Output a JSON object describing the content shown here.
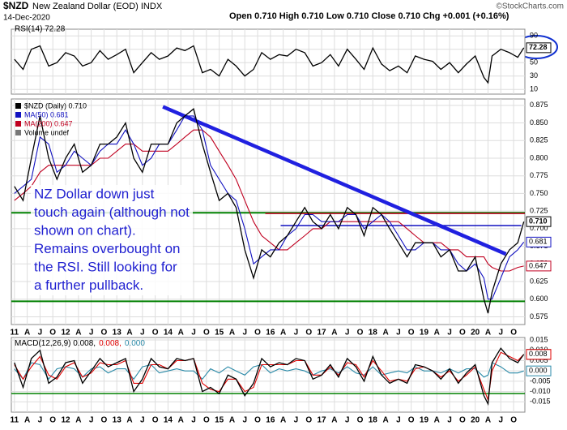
{
  "header": {
    "title": "$NZD",
    "subtitle": "New Zealand Dollar (EOD) INDX",
    "date": "14-Dec-2020",
    "quote": "Open 0.710  High 0.710  Low 0.710  Close 0.710  Chg +0.001 (+0.16%)",
    "source": "©StockCharts.com"
  },
  "chart_data": [
    {
      "type": "line",
      "ylim": [
        3,
        100
      ],
      "yticks": [
        10,
        30,
        50,
        70,
        90
      ],
      "grid": true,
      "x": [
        2011,
        2011.17,
        2011.33,
        2011.5,
        2011.67,
        2011.83,
        2012,
        2012.17,
        2012.33,
        2012.5,
        2012.67,
        2012.83,
        2013,
        2013.17,
        2013.33,
        2013.5,
        2013.67,
        2013.83,
        2014,
        2014.17,
        2014.33,
        2014.5,
        2014.67,
        2014.83,
        2015,
        2015.17,
        2015.33,
        2015.5,
        2015.67,
        2015.83,
        2016,
        2016.17,
        2016.33,
        2016.5,
        2016.67,
        2016.83,
        2017,
        2017.17,
        2017.33,
        2017.5,
        2017.67,
        2017.83,
        2018,
        2018.17,
        2018.33,
        2018.5,
        2018.67,
        2018.83,
        2019,
        2019.17,
        2019.33,
        2019.5,
        2019.67,
        2019.83,
        2020,
        2020.17,
        2020.25,
        2020.33,
        2020.5,
        2020.67,
        2020.83,
        2020.95
      ],
      "series": [
        {
          "name": "RSI(14) 72.28",
          "color": "#000000",
          "last_label": "72.28",
          "values": [
            55,
            40,
            70,
            75,
            45,
            50,
            65,
            60,
            45,
            50,
            68,
            55,
            62,
            70,
            35,
            50,
            65,
            55,
            60,
            72,
            68,
            75,
            35,
            40,
            30,
            55,
            45,
            30,
            40,
            65,
            55,
            62,
            60,
            70,
            65,
            45,
            50,
            62,
            45,
            70,
            55,
            40,
            72,
            48,
            38,
            45,
            35,
            60,
            55,
            52,
            40,
            50,
            35,
            48,
            60,
            28,
            20,
            60,
            70,
            65,
            58,
            72.28
          ]
        }
      ]
    },
    {
      "type": "line",
      "xlim": [
        2010.94,
        2020.97
      ],
      "ylim": [
        0.564,
        0.884
      ],
      "grid": true,
      "xticks": [
        {
          "value": 2011,
          "label": "11"
        },
        {
          "value": 2011.25,
          "label": "A"
        },
        {
          "value": 2011.5,
          "label": "J"
        },
        {
          "value": 2011.75,
          "label": "O"
        },
        {
          "value": 2012,
          "label": "12"
        },
        {
          "value": 2012.25,
          "label": "A"
        },
        {
          "value": 2012.5,
          "label": "J"
        },
        {
          "value": 2012.75,
          "label": "O"
        },
        {
          "value": 2013,
          "label": "13"
        },
        {
          "value": 2013.25,
          "label": "A"
        },
        {
          "value": 2013.5,
          "label": "J"
        },
        {
          "value": 2013.75,
          "label": "O"
        },
        {
          "value": 2014,
          "label": "14"
        },
        {
          "value": 2014.25,
          "label": "A"
        },
        {
          "value": 2014.5,
          "label": "J"
        },
        {
          "value": 2014.75,
          "label": "O"
        },
        {
          "value": 2015,
          "label": "15"
        },
        {
          "value": 2015.25,
          "label": "A"
        },
        {
          "value": 2015.5,
          "label": "J"
        },
        {
          "value": 2015.75,
          "label": "O"
        },
        {
          "value": 2016,
          "label": "16"
        },
        {
          "value": 2016.25,
          "label": "A"
        },
        {
          "value": 2016.5,
          "label": "J"
        },
        {
          "value": 2016.75,
          "label": "O"
        },
        {
          "value": 2017,
          "label": "17"
        },
        {
          "value": 2017.25,
          "label": "A"
        },
        {
          "value": 2017.5,
          "label": "J"
        },
        {
          "value": 2017.75,
          "label": "O"
        },
        {
          "value": 2018,
          "label": "18"
        },
        {
          "value": 2018.25,
          "label": "A"
        },
        {
          "value": 2018.5,
          "label": "J"
        },
        {
          "value": 2018.75,
          "label": "O"
        },
        {
          "value": 2019,
          "label": "19"
        },
        {
          "value": 2019.25,
          "label": "A"
        },
        {
          "value": 2019.5,
          "label": "J"
        },
        {
          "value": 2019.75,
          "label": "O"
        },
        {
          "value": 2020,
          "label": "20"
        },
        {
          "value": 2020.25,
          "label": "A"
        },
        {
          "value": 2020.5,
          "label": "J"
        },
        {
          "value": 2020.75,
          "label": "O"
        }
      ],
      "yticks": [
        0.875,
        {
          "value": 0.85,
          "label": "0.850"
        },
        0.825,
        {
          "value": 0.8,
          "label": "0.800"
        },
        0.775,
        {
          "value": 0.75,
          "label": "0.750"
        },
        0.725,
        {
          "value": 0.7,
          "label": "0.700"
        },
        0.675,
        {
          "value": 0.65,
          "label": "0.650"
        },
        0.625,
        {
          "value": 0.6,
          "label": "0.600"
        },
        0.575
      ],
      "x": [
        2011,
        2011.17,
        2011.33,
        2011.5,
        2011.67,
        2011.83,
        2012,
        2012.17,
        2012.33,
        2012.5,
        2012.67,
        2012.83,
        2013,
        2013.17,
        2013.33,
        2013.5,
        2013.67,
        2013.83,
        2014,
        2014.17,
        2014.33,
        2014.5,
        2014.67,
        2014.83,
        2015,
        2015.17,
        2015.33,
        2015.5,
        2015.67,
        2015.83,
        2016,
        2016.17,
        2016.33,
        2016.5,
        2016.67,
        2016.83,
        2017,
        2017.17,
        2017.33,
        2017.5,
        2017.67,
        2017.83,
        2018,
        2018.17,
        2018.33,
        2018.5,
        2018.67,
        2018.83,
        2019,
        2019.17,
        2019.33,
        2019.5,
        2019.67,
        2019.83,
        2020,
        2020.17,
        2020.25,
        2020.33,
        2020.5,
        2020.67,
        2020.83,
        2020.95
      ],
      "series": [
        {
          "name": "$NZD (Daily) 0.710",
          "color": "#000000",
          "last_label": "0.710",
          "values": [
            0.76,
            0.74,
            0.8,
            0.86,
            0.8,
            0.77,
            0.8,
            0.82,
            0.78,
            0.79,
            0.82,
            0.82,
            0.83,
            0.85,
            0.8,
            0.78,
            0.82,
            0.82,
            0.82,
            0.85,
            0.86,
            0.87,
            0.82,
            0.78,
            0.74,
            0.75,
            0.73,
            0.67,
            0.63,
            0.67,
            0.66,
            0.68,
            0.69,
            0.71,
            0.73,
            0.71,
            0.7,
            0.72,
            0.7,
            0.73,
            0.72,
            0.69,
            0.73,
            0.72,
            0.7,
            0.68,
            0.66,
            0.68,
            0.68,
            0.68,
            0.66,
            0.67,
            0.64,
            0.64,
            0.66,
            0.6,
            0.58,
            0.61,
            0.65,
            0.67,
            0.68,
            0.71
          ]
        },
        {
          "name": "MA(50) 0.681",
          "color": "#1010c0",
          "last_label": "0.681",
          "values": [
            0.75,
            0.76,
            0.77,
            0.83,
            0.82,
            0.78,
            0.79,
            0.81,
            0.8,
            0.79,
            0.81,
            0.82,
            0.82,
            0.84,
            0.82,
            0.79,
            0.8,
            0.82,
            0.82,
            0.84,
            0.86,
            0.86,
            0.84,
            0.79,
            0.77,
            0.75,
            0.74,
            0.7,
            0.65,
            0.66,
            0.67,
            0.67,
            0.69,
            0.7,
            0.72,
            0.72,
            0.71,
            0.71,
            0.71,
            0.72,
            0.72,
            0.7,
            0.71,
            0.72,
            0.71,
            0.69,
            0.67,
            0.67,
            0.68,
            0.68,
            0.67,
            0.67,
            0.65,
            0.64,
            0.65,
            0.63,
            0.6,
            0.6,
            0.63,
            0.66,
            0.67,
            0.681
          ]
        },
        {
          "name": "MA(200) 0.647",
          "color": "#c00020",
          "last_label": "0.647",
          "values": [
            0.74,
            0.75,
            0.76,
            0.78,
            0.79,
            0.79,
            0.79,
            0.79,
            0.79,
            0.79,
            0.8,
            0.8,
            0.81,
            0.82,
            0.82,
            0.81,
            0.81,
            0.81,
            0.81,
            0.82,
            0.83,
            0.84,
            0.84,
            0.83,
            0.81,
            0.79,
            0.77,
            0.74,
            0.71,
            0.69,
            0.68,
            0.67,
            0.67,
            0.68,
            0.69,
            0.7,
            0.7,
            0.71,
            0.71,
            0.71,
            0.71,
            0.71,
            0.71,
            0.71,
            0.71,
            0.71,
            0.7,
            0.69,
            0.68,
            0.68,
            0.68,
            0.67,
            0.67,
            0.66,
            0.66,
            0.66,
            0.65,
            0.645,
            0.64,
            0.64,
            0.645,
            0.647
          ]
        }
      ],
      "legend_extra": "Volume undef",
      "lines": [
        {
          "x": [
            2010.94,
            2020.97
          ],
          "y": [
            0.7225,
            0.7225
          ],
          "color": "#008000",
          "width": 2
        },
        {
          "x": [
            2010.94,
            2020.97
          ],
          "y": [
            0.597,
            0.597
          ],
          "color": "#008000",
          "width": 2
        },
        {
          "x": [
            2015.9,
            2020.97
          ],
          "y": [
            0.7215,
            0.7215
          ],
          "color": "#c00020",
          "width": 1.5
        },
        {
          "x": [
            2016.2,
            2020.9
          ],
          "y": [
            0.7045,
            0.7045
          ],
          "color": "#1010c0",
          "width": 1.5
        },
        {
          "x": [
            2013.9,
            2020.6
          ],
          "y": [
            0.873,
            0.664
          ],
          "color": "#2020e0",
          "width": 4.5
        }
      ],
      "annotation": [
        "NZ Dollar down just",
        "touch again (although not",
        "shown on chart).",
        "Remains overbought on",
        "the RSI. Still looking for",
        "a further pullback."
      ]
    },
    {
      "type": "line",
      "ylim": [
        -0.02,
        0.0162
      ],
      "grid": true,
      "yticks": [
        0.015,
        {
          "value": 0.01,
          "label": "0.010"
        },
        0.005,
        {
          "value": 0,
          "label": "0.000"
        },
        -0.005,
        {
          "value": -0.01,
          "label": "-0.010"
        },
        -0.015
      ],
      "x": [
        2011,
        2011.17,
        2011.33,
        2011.5,
        2011.67,
        2011.83,
        2012,
        2012.17,
        2012.33,
        2012.5,
        2012.67,
        2012.83,
        2013,
        2013.17,
        2013.33,
        2013.5,
        2013.67,
        2013.83,
        2014,
        2014.17,
        2014.33,
        2014.5,
        2014.67,
        2014.83,
        2015,
        2015.17,
        2015.33,
        2015.5,
        2015.67,
        2015.83,
        2016,
        2016.17,
        2016.33,
        2016.5,
        2016.67,
        2016.83,
        2017,
        2017.17,
        2017.33,
        2017.5,
        2017.67,
        2017.83,
        2018,
        2018.17,
        2018.33,
        2018.5,
        2018.67,
        2018.83,
        2019,
        2019.17,
        2019.33,
        2019.5,
        2019.67,
        2019.83,
        2020,
        2020.17,
        2020.25,
        2020.33,
        2020.5,
        2020.67,
        2020.83,
        2020.95
      ],
      "series": [
        {
          "name": "MACD(12,26,9) 0.008,",
          "color": "#000000",
          "last_label": "0.008",
          "values": [
            0.004,
            -0.008,
            0.006,
            0.01,
            -0.006,
            -0.003,
            0.004,
            0.005,
            -0.006,
            0.0,
            0.006,
            0.002,
            0.004,
            0.006,
            -0.01,
            -0.004,
            0.006,
            0.002,
            0.001,
            0.006,
            0.005,
            0.006,
            -0.01,
            -0.008,
            -0.011,
            -0.002,
            -0.004,
            -0.012,
            -0.006,
            0.006,
            0.002,
            0.004,
            0.003,
            0.006,
            0.005,
            -0.004,
            -0.002,
            0.003,
            -0.003,
            0.006,
            0.002,
            -0.005,
            0.007,
            -0.002,
            -0.006,
            -0.004,
            -0.006,
            0.003,
            0.002,
            0.0,
            -0.004,
            0.001,
            -0.006,
            -0.001,
            0.003,
            -0.012,
            -0.016,
            0.004,
            0.011,
            0.006,
            0.004,
            0.008
          ]
        },
        {
          "name": "0.008,",
          "color": "#e00000",
          "last_label": "0.008",
          "values": [
            0.003,
            -0.004,
            0.002,
            0.007,
            -0.002,
            -0.004,
            0.002,
            0.004,
            -0.003,
            -0.001,
            0.004,
            0.003,
            0.003,
            0.005,
            -0.006,
            -0.006,
            0.003,
            0.003,
            0.001,
            0.005,
            0.005,
            0.006,
            -0.006,
            -0.009,
            -0.01,
            -0.004,
            -0.004,
            -0.01,
            -0.008,
            0.003,
            0.003,
            0.003,
            0.003,
            0.005,
            0.005,
            -0.002,
            -0.002,
            0.002,
            -0.002,
            0.004,
            0.003,
            -0.003,
            0.005,
            0.0,
            -0.005,
            -0.004,
            -0.005,
            0.001,
            0.002,
            0.0,
            -0.003,
            0.0,
            -0.005,
            -0.002,
            0.002,
            -0.009,
            -0.014,
            0.0,
            0.009,
            0.007,
            0.005,
            0.008
          ]
        },
        {
          "name": "0.000",
          "color": "#2a8aa8",
          "last_label": "0.000",
          "values": [
            0.001,
            -0.004,
            0.004,
            0.003,
            -0.004,
            0.001,
            0.002,
            0.001,
            -0.003,
            0.001,
            0.002,
            -0.001,
            0.001,
            0.001,
            -0.004,
            0.002,
            0.003,
            -0.001,
            0,
            0.001,
            0,
            0,
            -0.004,
            0.001,
            -0.001,
            0.002,
            0,
            -0.002,
            0.002,
            0.003,
            -0.001,
            0.001,
            0,
            0.001,
            0,
            -0.002,
            0,
            0.001,
            -0.001,
            0.002,
            -0.001,
            -0.002,
            0.002,
            -0.002,
            -0.001,
            0,
            -0.001,
            0.002,
            0,
            0,
            -0.001,
            0.001,
            -0.001,
            0.001,
            0.001,
            -0.003,
            -0.002,
            0.004,
            0.002,
            -0.001,
            -0.001,
            0.0
          ]
        }
      ],
      "lines": [
        {
          "x": [
            2010.94,
            2020.97
          ],
          "y": [
            -0.011,
            -0.011
          ],
          "color": "#008000",
          "width": 1.5
        }
      ]
    }
  ]
}
